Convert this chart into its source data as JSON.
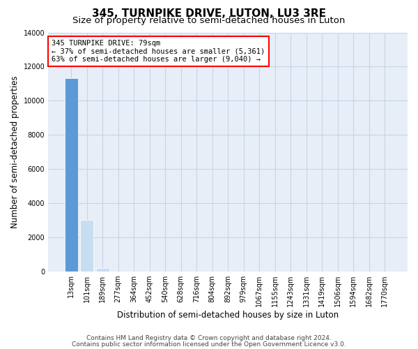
{
  "title": "345, TURNPIKE DRIVE, LUTON, LU3 3RE",
  "subtitle": "Size of property relative to semi-detached houses in Luton",
  "xlabel": "Distribution of semi-detached houses by size in Luton",
  "ylabel": "Number of semi-detached properties",
  "bar_labels": [
    "13sqm",
    "101sqm",
    "189sqm",
    "277sqm",
    "364sqm",
    "452sqm",
    "540sqm",
    "628sqm",
    "716sqm",
    "804sqm",
    "892sqm",
    "979sqm",
    "1067sqm",
    "1155sqm",
    "1243sqm",
    "1331sqm",
    "1419sqm",
    "1506sqm",
    "1594sqm",
    "1682sqm",
    "1770sqm"
  ],
  "bar_values": [
    11300,
    3000,
    200,
    0,
    0,
    0,
    0,
    0,
    0,
    0,
    0,
    0,
    0,
    0,
    0,
    0,
    0,
    0,
    0,
    0,
    0
  ],
  "bar_colors": [
    "#5b9bd5",
    "#c5dff0",
    "#c5dff0",
    "#c5dff0",
    "#c5dff0",
    "#c5dff0",
    "#c5dff0",
    "#c5dff0",
    "#c5dff0",
    "#c5dff0",
    "#c5dff0",
    "#c5dff0",
    "#c5dff0",
    "#c5dff0",
    "#c5dff0",
    "#c5dff0",
    "#c5dff0",
    "#c5dff0",
    "#c5dff0",
    "#c5dff0",
    "#c5dff0"
  ],
  "ylim": [
    0,
    14000
  ],
  "yticks": [
    0,
    2000,
    4000,
    6000,
    8000,
    10000,
    12000,
    14000
  ],
  "annotation_line1": "345 TURNPIKE DRIVE: 79sqm",
  "annotation_line2": "← 37% of semi-detached houses are smaller (5,361)",
  "annotation_line3": "63% of semi-detached houses are larger (9,040) →",
  "grid_color": "#c8d4e8",
  "background_color": "#e8eef8",
  "footer_line1": "Contains HM Land Registry data © Crown copyright and database right 2024.",
  "footer_line2": "Contains public sector information licensed under the Open Government Licence v3.0.",
  "title_fontsize": 11,
  "subtitle_fontsize": 9.5,
  "axis_label_fontsize": 8.5,
  "tick_fontsize": 7,
  "annotation_fontsize": 7.5,
  "footer_fontsize": 6.5
}
